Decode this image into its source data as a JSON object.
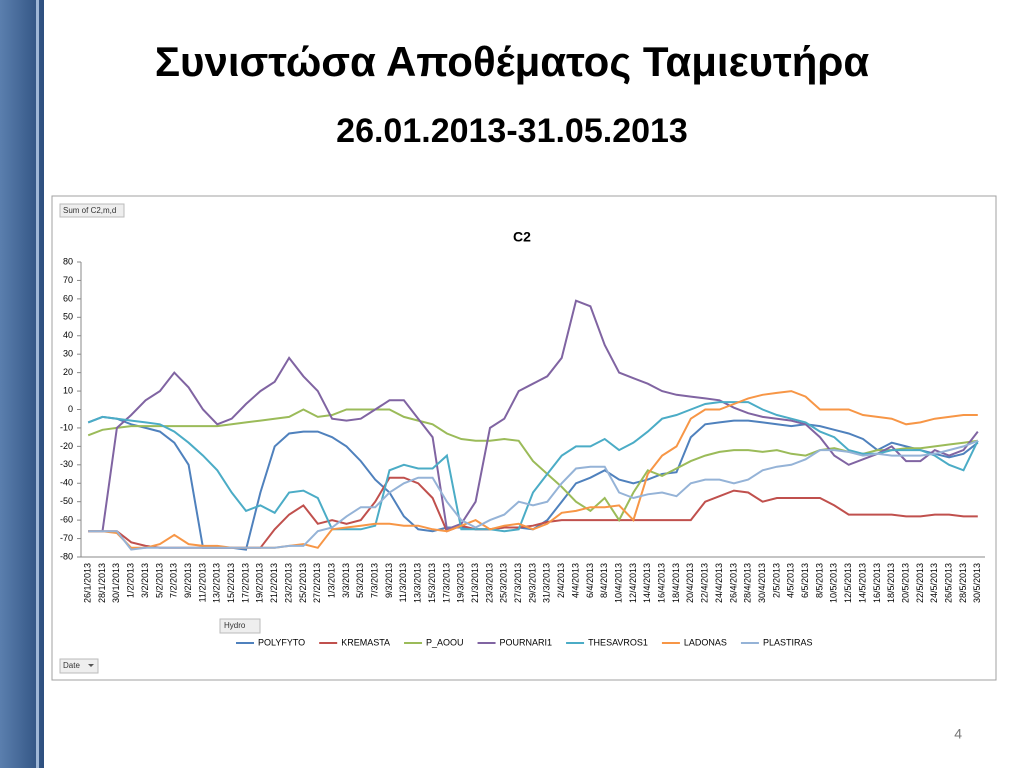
{
  "slide": {
    "title": "Συνιστώσα Αποθέματος Ταμιευτήρα",
    "subtitle": "26.01.2013-31.05.2013",
    "page_number": "4"
  },
  "chart_data": {
    "type": "line",
    "title": "C2",
    "field_buttons": {
      "values": "Sum of C2,m,d",
      "legend": "Hydro",
      "axis": "Date"
    },
    "categories": [
      "26/1/2013",
      "28/1/2013",
      "30/1/2013",
      "1/2/2013",
      "3/2/2013",
      "5/2/2013",
      "7/2/2013",
      "9/2/2013",
      "11/2/2013",
      "13/2/2013",
      "15/2/2013",
      "17/2/2013",
      "19/2/2013",
      "21/2/2013",
      "23/2/2013",
      "25/2/2013",
      "27/2/2013",
      "1/3/2013",
      "3/3/2013",
      "5/3/2013",
      "7/3/2013",
      "9/3/2013",
      "11/3/2013",
      "13/3/2013",
      "15/3/2013",
      "17/3/2013",
      "19/3/2013",
      "21/3/2013",
      "23/3/2013",
      "25/3/2013",
      "27/3/2013",
      "29/3/2013",
      "31/3/2013",
      "2/4/2013",
      "4/4/2013",
      "6/4/2013",
      "8/4/2013",
      "10/4/2013",
      "12/4/2013",
      "14/4/2013",
      "16/4/2013",
      "18/4/2013",
      "20/4/2013",
      "22/4/2013",
      "24/4/2013",
      "26/4/2013",
      "28/4/2013",
      "30/4/2013",
      "2/5/2013",
      "4/5/2013",
      "6/5/2013",
      "8/5/2013",
      "10/5/2013",
      "12/5/2013",
      "14/5/2013",
      "16/5/2013",
      "18/5/2013",
      "20/5/2013",
      "22/5/2013",
      "24/5/2013",
      "26/5/2013",
      "28/5/2013",
      "30/5/2013"
    ],
    "series": [
      {
        "name": "POLYFYTO",
        "color": "#4f81bd",
        "values": [
          -7,
          -4,
          -5,
          -8,
          -10,
          -12,
          -18,
          -30,
          -75,
          -75,
          -75,
          -76,
          -45,
          -20,
          -13,
          -12,
          -12,
          -15,
          -20,
          -28,
          -38,
          -45,
          -58,
          -65,
          -66,
          -64,
          -64,
          -65,
          -65,
          -64,
          -64,
          -65,
          -60,
          -50,
          -40,
          -37,
          -33,
          -38,
          -40,
          -38,
          -35,
          -34,
          -15,
          -8,
          -7,
          -6,
          -6,
          -7,
          -8,
          -9,
          -8,
          -9,
          -11,
          -13,
          -16,
          -22,
          -18,
          -20,
          -22,
          -24,
          -26,
          -24,
          -18
        ]
      },
      {
        "name": "KREMASTA",
        "color": "#c0504d",
        "values": [
          -66,
          -66,
          -66,
          -72,
          -74,
          -75,
          -75,
          -75,
          -75,
          -75,
          -75,
          -75,
          -75,
          -65,
          -57,
          -52,
          -62,
          -60,
          -62,
          -60,
          -50,
          -37,
          -37,
          -40,
          -48,
          -66,
          -63,
          -65,
          -65,
          -64,
          -64,
          -63,
          -61,
          -60,
          -60,
          -60,
          -60,
          -60,
          -60,
          -60,
          -60,
          -60,
          -60,
          -50,
          -47,
          -44,
          -45,
          -50,
          -48,
          -48,
          -48,
          -48,
          -52,
          -57,
          -57,
          -57,
          -57,
          -58,
          -58,
          -57,
          -57,
          -58,
          -58
        ]
      },
      {
        "name": "P_AOOU",
        "color": "#9bbb59",
        "values": [
          -14,
          -11,
          -10,
          -9,
          -9,
          -9,
          -9,
          -9,
          -9,
          -9,
          -8,
          -7,
          -6,
          -5,
          -4,
          0,
          -4,
          -3,
          0,
          0,
          0,
          0,
          -4,
          -6,
          -8,
          -13,
          -16,
          -17,
          -17,
          -16,
          -17,
          -28,
          -35,
          -42,
          -50,
          -55,
          -48,
          -60,
          -45,
          -33,
          -36,
          -32,
          -28,
          -25,
          -23,
          -22,
          -22,
          -23,
          -22,
          -24,
          -25,
          -22,
          -21,
          -23,
          -24,
          -22,
          -22,
          -21,
          -21,
          -20,
          -19,
          -18,
          -17
        ]
      },
      {
        "name": "POURNARI1",
        "color": "#8064a2",
        "values": [
          -66,
          -66,
          -10,
          -3,
          5,
          10,
          20,
          12,
          0,
          -8,
          -5,
          3,
          10,
          15,
          28,
          18,
          10,
          -5,
          -6,
          -5,
          0,
          5,
          5,
          -5,
          -15,
          -65,
          -62,
          -50,
          -10,
          -5,
          10,
          14,
          18,
          28,
          59,
          56,
          35,
          20,
          17,
          14,
          10,
          8,
          7,
          6,
          5,
          1,
          -2,
          -4,
          -5,
          -6,
          -8,
          -15,
          -25,
          -30,
          -27,
          -24,
          -20,
          -28,
          -28,
          -22,
          -25,
          -22,
          -12
        ]
      },
      {
        "name": "THESAVROS1",
        "color": "#4bacc6",
        "values": [
          -7,
          -4,
          -5,
          -6,
          -7,
          -8,
          -12,
          -18,
          -25,
          -33,
          -45,
          -55,
          -52,
          -56,
          -45,
          -44,
          -48,
          -65,
          -65,
          -65,
          -63,
          -33,
          -30,
          -32,
          -32,
          -25,
          -65,
          -65,
          -65,
          -66,
          -65,
          -45,
          -35,
          -25,
          -20,
          -20,
          -16,
          -22,
          -18,
          -12,
          -5,
          -3,
          0,
          3,
          4,
          4,
          4,
          0,
          -3,
          -5,
          -7,
          -12,
          -15,
          -22,
          -24,
          -24,
          -22,
          -22,
          -22,
          -25,
          -30,
          -33,
          -17
        ]
      },
      {
        "name": "LADONAS",
        "color": "#f79646",
        "values": [
          -66,
          -66,
          -67,
          -75,
          -75,
          -73,
          -68,
          -73,
          -74,
          -74,
          -75,
          -75,
          -75,
          -75,
          -74,
          -73,
          -75,
          -65,
          -64,
          -63,
          -62,
          -62,
          -63,
          -63,
          -65,
          -66,
          -63,
          -60,
          -65,
          -63,
          -62,
          -65,
          -62,
          -56,
          -55,
          -53,
          -53,
          -52,
          -60,
          -35,
          -25,
          -20,
          -5,
          0,
          0,
          3,
          6,
          8,
          9,
          10,
          7,
          0,
          0,
          0,
          -3,
          -4,
          -5,
          -8,
          -7,
          -5,
          -4,
          -3,
          -3
        ]
      },
      {
        "name": "PLASTIRAS",
        "color": "#95b3d7",
        "values": [
          -66,
          -66,
          -66,
          -76,
          -75,
          -75,
          -75,
          -75,
          -75,
          -75,
          -75,
          -75,
          -75,
          -75,
          -74,
          -74,
          -66,
          -64,
          -58,
          -53,
          -53,
          -45,
          -40,
          -37,
          -37,
          -50,
          -60,
          -64,
          -60,
          -57,
          -50,
          -52,
          -50,
          -40,
          -32,
          -31,
          -31,
          -45,
          -48,
          -46,
          -45,
          -47,
          -40,
          -38,
          -38,
          -40,
          -38,
          -33,
          -31,
          -30,
          -27,
          -22,
          -22,
          -23,
          -25,
          -24,
          -25,
          -25,
          -25,
          -24,
          -22,
          -20,
          -17
        ]
      }
    ],
    "ylim": [
      -80,
      80
    ],
    "yticks": [
      -80,
      -70,
      -60,
      -50,
      -40,
      -30,
      -20,
      -10,
      0,
      10,
      20,
      30,
      40,
      50,
      60,
      70,
      80
    ],
    "grid": false
  }
}
